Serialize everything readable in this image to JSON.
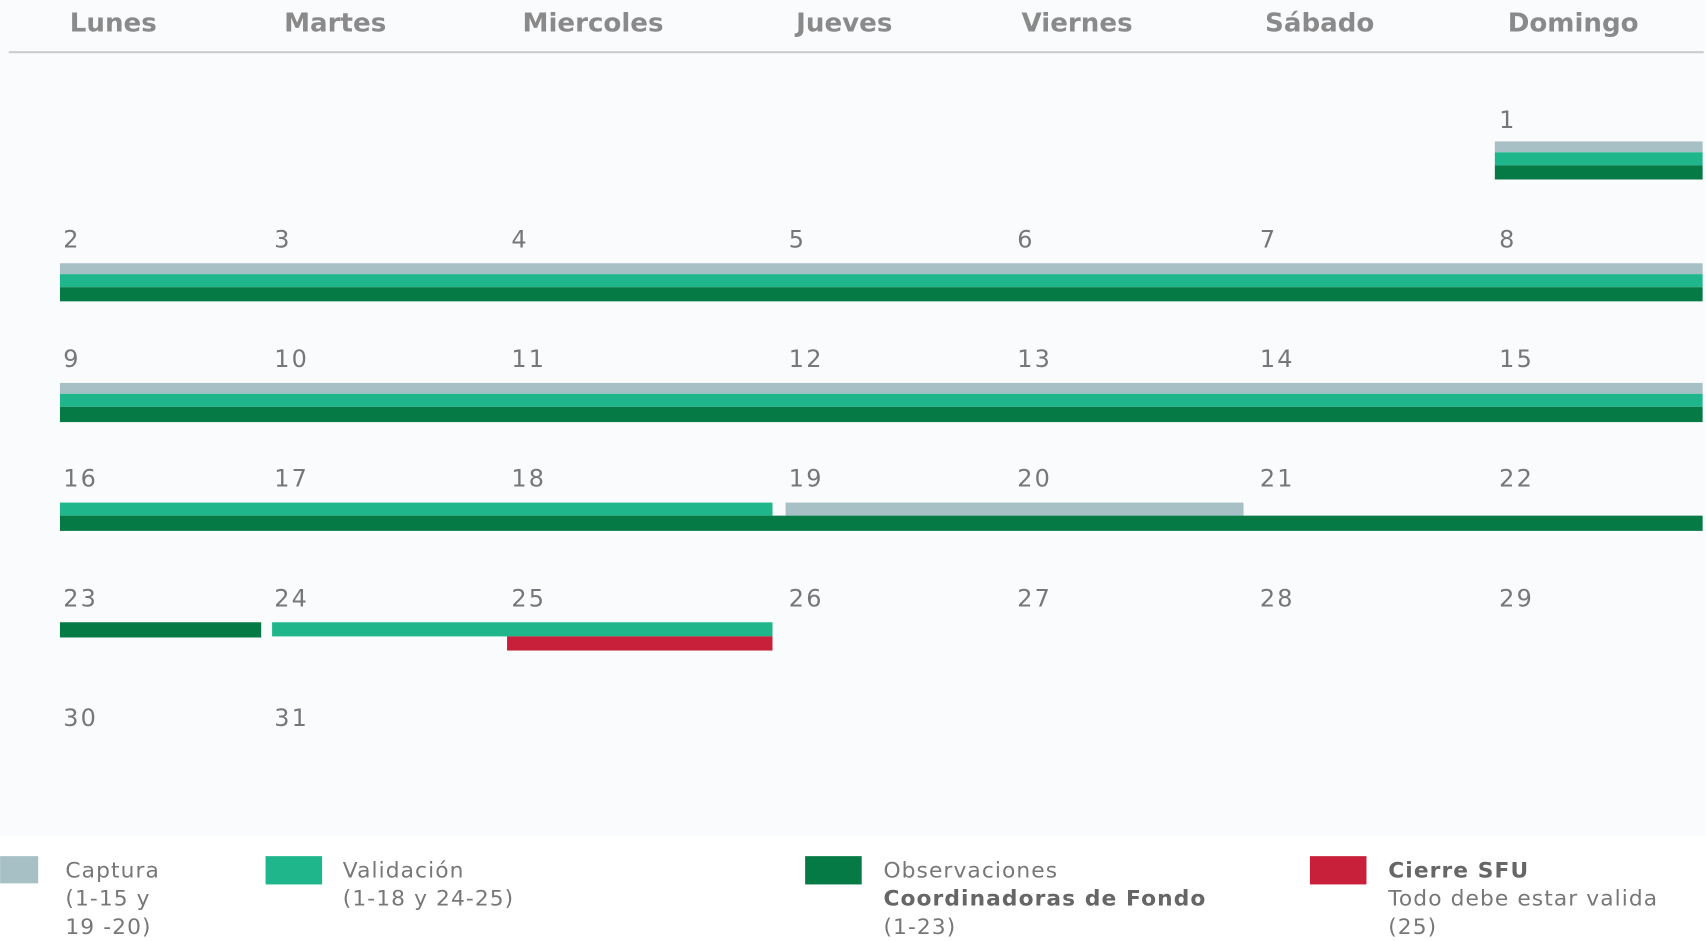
{
  "header": {
    "weekdays": [
      "Lunes",
      "Martes",
      "Miercoles",
      "Jueves",
      "Viernes",
      "Sábado",
      "Domingo"
    ]
  },
  "calendar": {
    "weeks": [
      [
        null,
        null,
        null,
        null,
        null,
        null,
        1
      ],
      [
        2,
        3,
        4,
        5,
        6,
        7,
        8
      ],
      [
        9,
        10,
        11,
        12,
        13,
        14,
        15
      ],
      [
        16,
        17,
        18,
        19,
        20,
        21,
        22
      ],
      [
        23,
        24,
        25,
        26,
        27,
        28,
        29
      ],
      [
        30,
        31,
        null,
        null,
        null,
        null,
        null
      ]
    ]
  },
  "legend": [
    {
      "lines": [
        "Captura",
        "(1-15 y",
        "19 -20)"
      ],
      "bold": []
    },
    {
      "lines": [
        "Validación",
        "(1-18 y 24-25)"
      ],
      "bold": []
    },
    {
      "lines": [
        "Observaciones",
        "Coordinadoras de Fondo",
        "(1-23)"
      ],
      "bold": [
        1
      ]
    },
    {
      "lines": [
        "Cierre SFU",
        "Todo debe estar valida",
        "(25)"
      ],
      "bold": [
        0
      ]
    }
  ]
}
